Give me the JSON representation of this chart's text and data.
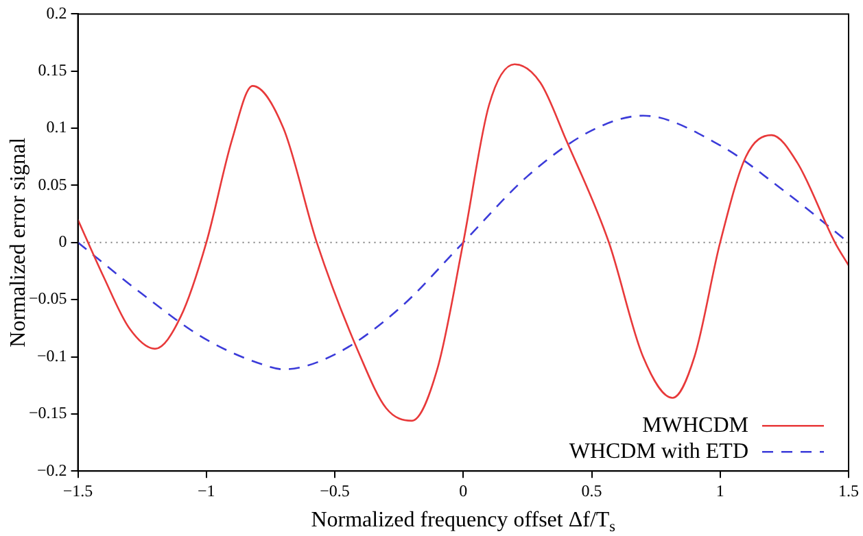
{
  "chart_data": {
    "type": "line",
    "xlabel": "Normalized frequency offset Δf/T$_{s}$",
    "ylabel": "Normalized error signal",
    "xlim": [
      -1.5,
      1.5
    ],
    "xticks": [
      -1.5,
      -1,
      -0.5,
      0,
      0.5,
      1,
      1.5
    ],
    "ylim": [
      -0.2,
      0.2
    ],
    "yticks": [
      -0.2,
      -0.15,
      -0.1,
      -0.05,
      0,
      0.05,
      0.1,
      0.15,
      0.2
    ],
    "grid": false,
    "legend": "bottom right",
    "marker": "none",
    "ref_lines": [
      {
        "axis": "y",
        "value": 0,
        "color": "#808080",
        "line_style": "dotted"
      }
    ],
    "series": [
      {
        "name": "MWHCDM",
        "color": "#e8393a",
        "line_style": "solid",
        "x": [
          -1.5,
          -1.4,
          -1.3,
          -1.2,
          -1.1,
          -1.0,
          -0.9,
          -0.82,
          -0.7,
          -0.57,
          -0.4,
          -0.3,
          -0.2,
          -0.1,
          0,
          0.1,
          0.2,
          0.3,
          0.4,
          0.567,
          0.7,
          0.815,
          0.9,
          1.0,
          1.1,
          1.2,
          1.3,
          1.447,
          1.5
        ],
        "values": [
          0.02,
          -0.03,
          -0.075,
          -0.093,
          -0.065,
          0,
          0.09,
          0.137,
          0.1,
          0,
          -0.1,
          -0.145,
          -0.156,
          -0.11,
          0,
          0.12,
          0.156,
          0.14,
          0.09,
          0,
          -0.1,
          -0.136,
          -0.1,
          0,
          0.075,
          0.094,
          0.07,
          0,
          -0.02
        ]
      },
      {
        "name": "WHCDM with ETD",
        "color": "#3b3bd9",
        "line_style": "dashed",
        "x": [
          -1.5,
          -1.25,
          -1.0,
          -0.75,
          -0.7,
          -0.5,
          -0.25,
          0,
          0.25,
          0.5,
          0.7,
          1.0,
          1.25,
          1.5
        ],
        "values": [
          0,
          -0.045,
          -0.085,
          -0.109,
          -0.111,
          -0.098,
          -0.058,
          0,
          0.058,
          0.098,
          0.111,
          0.085,
          0.045,
          0
        ]
      }
    ]
  }
}
